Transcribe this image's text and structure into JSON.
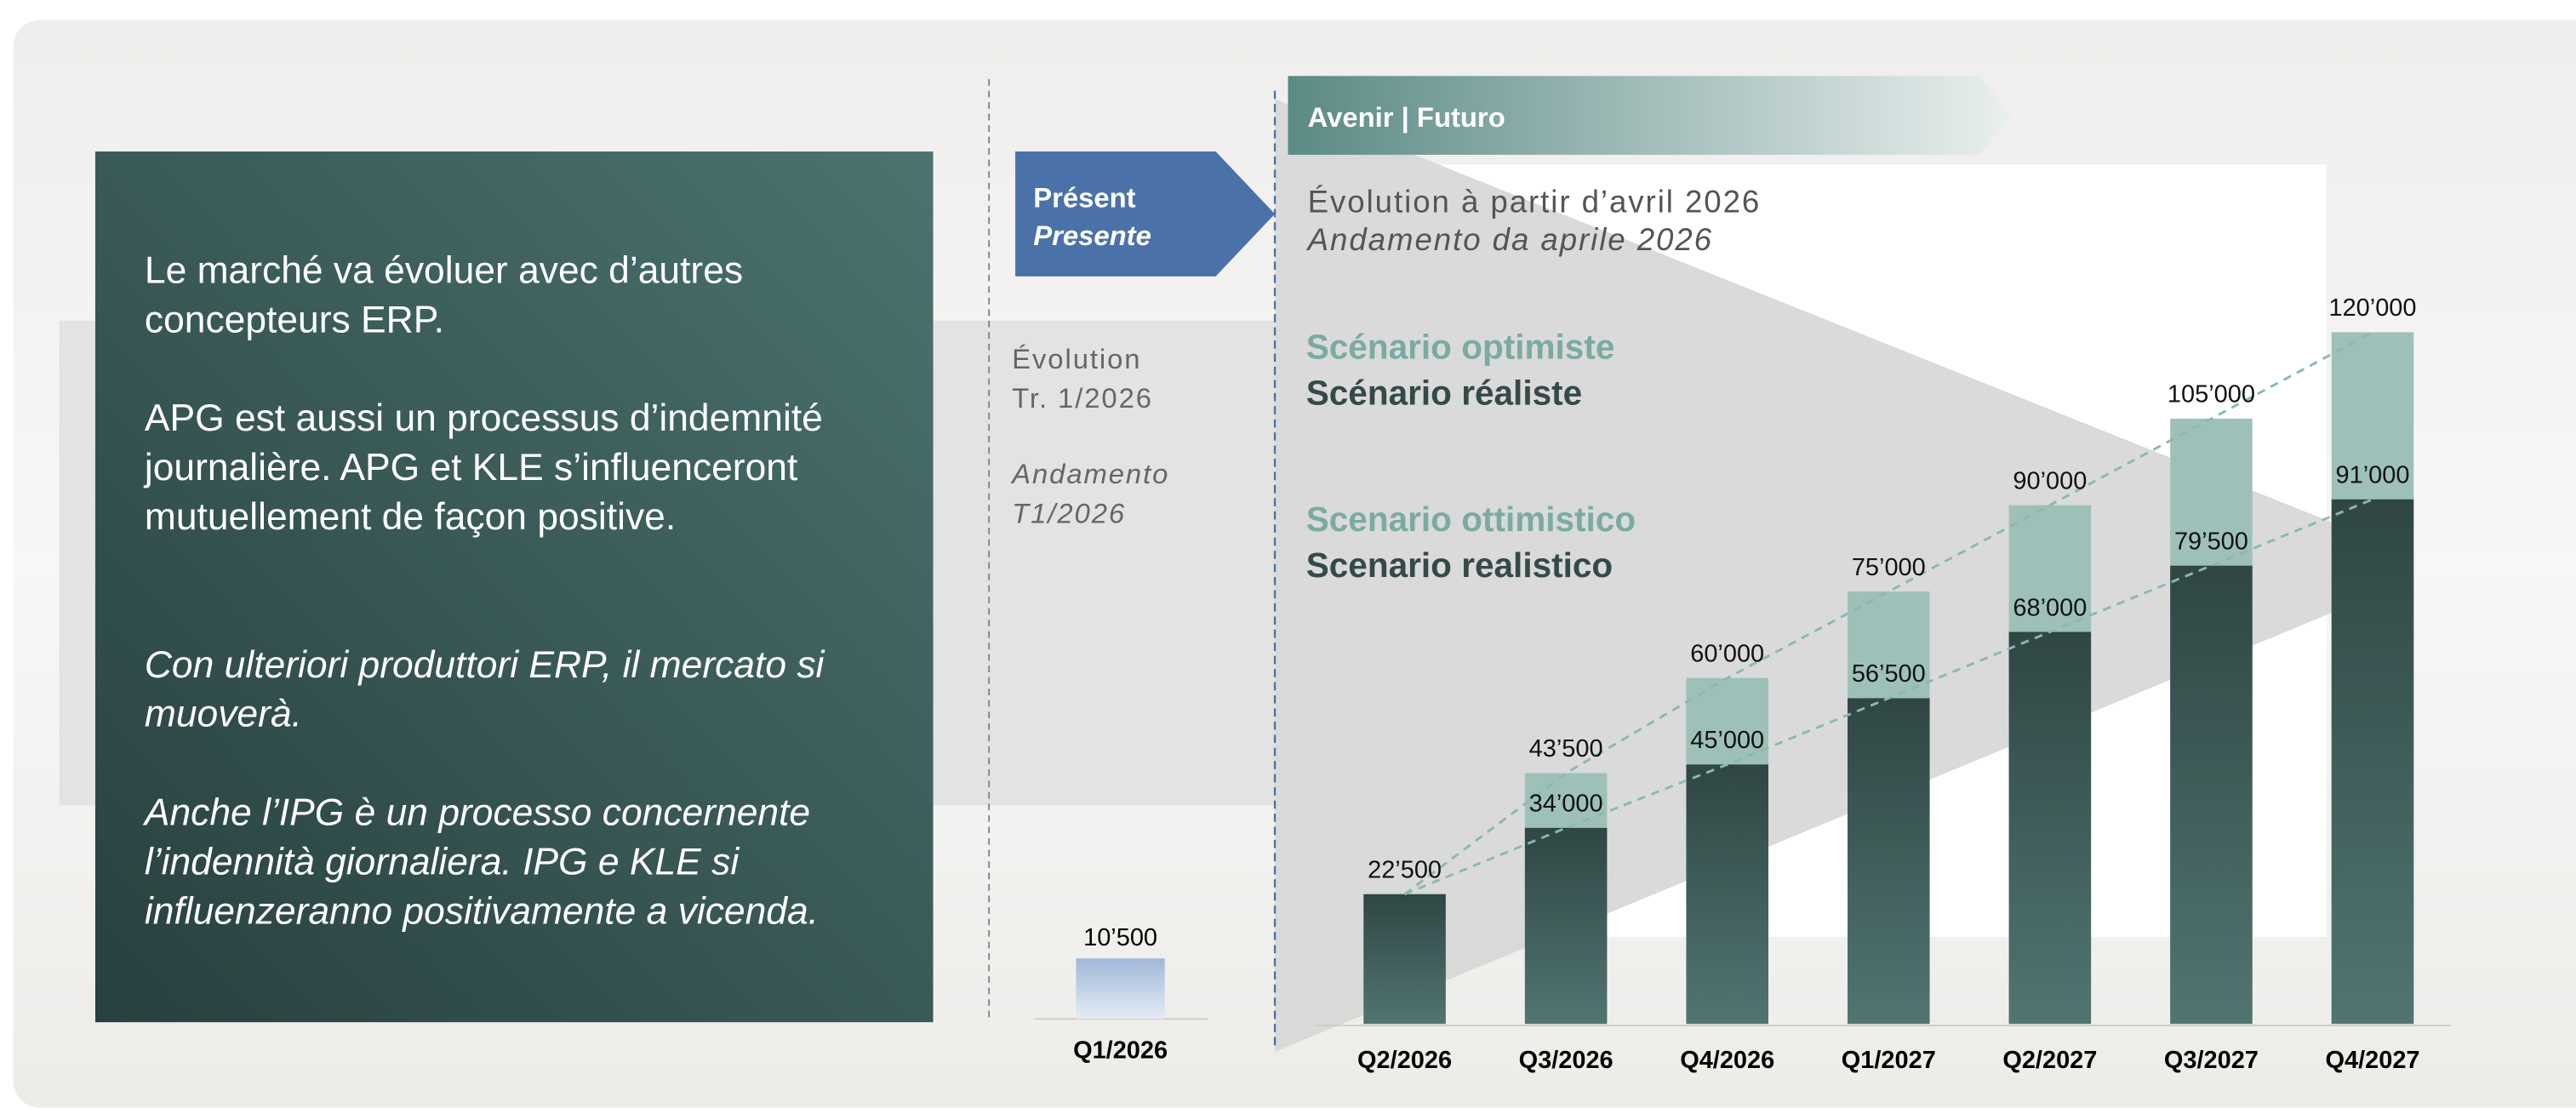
{
  "left_panel": {
    "paragraphs": [
      {
        "italic": false,
        "lines": [
          "Le marché va évoluer avec d’autres",
          "concepteurs ERP."
        ]
      },
      {
        "italic": false,
        "lines": [
          "APG est aussi un processus d’indemnité",
          "journalière. APG et KLE s’influenceront",
          "mutuellement de façon positive."
        ]
      },
      {
        "italic": true,
        "lines": [
          "Con ulteriori produttori ERP, il mercato si",
          "muoverà."
        ]
      },
      {
        "italic": true,
        "lines": [
          "Anche l’IPG è un processo concernente",
          "l’indennità giornaliera. IPG e KLE si",
          "influenzeranno positivamente a vicenda."
        ]
      }
    ]
  },
  "present": {
    "label": "Présent",
    "label_it": "Presente",
    "note": [
      "Évolution",
      "Tr. 1/2026"
    ],
    "note_it": [
      "Andamento",
      "T1/2026"
    ]
  },
  "chart_data": [
    {
      "type": "bar",
      "categories": [
        "Q1/2026"
      ],
      "values": [
        10500
      ],
      "value_labels": [
        "10’500"
      ],
      "color": "#a9bfdb"
    },
    {
      "type": "bar",
      "banner": "Avenir | Futuro",
      "title": "Évolution à partir d’avril 2026",
      "subtitle": "Andamento da aprile 2026",
      "categories": [
        "Q2/2026",
        "Q3/2026",
        "Q4/2026",
        "Q1/2027",
        "Q2/2027",
        "Q3/2027",
        "Q4/2027"
      ],
      "series": [
        {
          "name": "Scénario optimiste",
          "color": "#9dc1b9",
          "values": [
            22500,
            43500,
            60000,
            75000,
            90000,
            105000,
            120000
          ],
          "value_labels": [
            "22’500",
            "43’500",
            "60’000",
            "75’000",
            "90’000",
            "105’000",
            "120’000"
          ]
        },
        {
          "name": "Scénario réaliste",
          "color": "#344a48",
          "values": [
            22500,
            34000,
            45000,
            56500,
            68000,
            79500,
            91000
          ],
          "value_labels": [
            "22’500",
            "34’000",
            "45’000",
            "56’500",
            "68’000",
            "79’500",
            "91’000"
          ]
        }
      ],
      "legend_it": [
        "Scenario ottimistico",
        "Scenario realistico"
      ]
    }
  ]
}
